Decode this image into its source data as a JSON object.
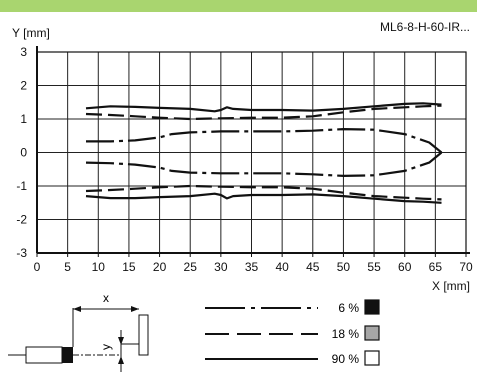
{
  "model": "ML6-8-H-60-IR...",
  "chart_data": {
    "type": "line",
    "ylabel": "Y [mm]",
    "xlabel": "X [mm]",
    "xlim": [
      0,
      70
    ],
    "ylim": [
      -3,
      3
    ],
    "x_ticks": [
      0,
      5,
      10,
      15,
      20,
      25,
      30,
      35,
      40,
      45,
      50,
      55,
      60,
      65,
      70
    ],
    "y_ticks": [
      3,
      2,
      1,
      0,
      -1,
      -2,
      -3
    ],
    "grid": true,
    "series": [
      {
        "name": "6 %",
        "style": "dash-dot",
        "curves": [
          [
            [
              8,
              0.33
            ],
            [
              12,
              0.33
            ],
            [
              16,
              0.36
            ],
            [
              20,
              0.45
            ],
            [
              22,
              0.55
            ],
            [
              25,
              0.6
            ],
            [
              30,
              0.63
            ],
            [
              35,
              0.63
            ],
            [
              40,
              0.63
            ],
            [
              45,
              0.65
            ],
            [
              50,
              0.7
            ],
            [
              55,
              0.68
            ],
            [
              60,
              0.55
            ],
            [
              64,
              0.3
            ],
            [
              66,
              0.0
            ]
          ],
          [
            [
              8,
              -0.3
            ],
            [
              12,
              -0.32
            ],
            [
              16,
              -0.36
            ],
            [
              20,
              -0.45
            ],
            [
              22,
              -0.55
            ],
            [
              25,
              -0.6
            ],
            [
              30,
              -0.62
            ],
            [
              35,
              -0.62
            ],
            [
              40,
              -0.62
            ],
            [
              45,
              -0.65
            ],
            [
              50,
              -0.7
            ],
            [
              55,
              -0.68
            ],
            [
              60,
              -0.55
            ],
            [
              64,
              -0.3
            ],
            [
              66,
              0.0
            ]
          ]
        ]
      },
      {
        "name": "18 %",
        "style": "dashed",
        "curves": [
          [
            [
              8,
              1.15
            ],
            [
              12,
              1.12
            ],
            [
              16,
              1.08
            ],
            [
              20,
              1.04
            ],
            [
              25,
              1.0
            ],
            [
              30,
              1.02
            ],
            [
              35,
              1.04
            ],
            [
              40,
              1.04
            ],
            [
              45,
              1.08
            ],
            [
              50,
              1.2
            ],
            [
              55,
              1.3
            ],
            [
              60,
              1.35
            ],
            [
              63,
              1.38
            ],
            [
              66,
              1.4
            ]
          ],
          [
            [
              8,
              -1.15
            ],
            [
              12,
              -1.12
            ],
            [
              16,
              -1.08
            ],
            [
              20,
              -1.04
            ],
            [
              25,
              -1.0
            ],
            [
              30,
              -1.02
            ],
            [
              35,
              -1.04
            ],
            [
              40,
              -1.04
            ],
            [
              45,
              -1.08
            ],
            [
              50,
              -1.2
            ],
            [
              55,
              -1.3
            ],
            [
              60,
              -1.35
            ],
            [
              63,
              -1.38
            ],
            [
              66,
              -1.4
            ]
          ]
        ]
      },
      {
        "name": "90 %",
        "style": "solid",
        "curves": [
          [
            [
              8,
              1.32
            ],
            [
              12,
              1.38
            ],
            [
              16,
              1.36
            ],
            [
              20,
              1.33
            ],
            [
              25,
              1.3
            ],
            [
              29,
              1.23
            ],
            [
              30,
              1.27
            ],
            [
              31,
              1.35
            ],
            [
              32,
              1.3
            ],
            [
              35,
              1.27
            ],
            [
              40,
              1.27
            ],
            [
              45,
              1.25
            ],
            [
              50,
              1.3
            ],
            [
              55,
              1.38
            ],
            [
              60,
              1.45
            ],
            [
              63,
              1.47
            ],
            [
              66,
              1.43
            ]
          ],
          [
            [
              8,
              -1.3
            ],
            [
              12,
              -1.36
            ],
            [
              16,
              -1.36
            ],
            [
              20,
              -1.33
            ],
            [
              25,
              -1.3
            ],
            [
              29,
              -1.23
            ],
            [
              30,
              -1.27
            ],
            [
              31,
              -1.37
            ],
            [
              32,
              -1.3
            ],
            [
              35,
              -1.27
            ],
            [
              40,
              -1.27
            ],
            [
              45,
              -1.25
            ],
            [
              50,
              -1.3
            ],
            [
              55,
              -1.38
            ],
            [
              60,
              -1.45
            ],
            [
              63,
              -1.47
            ],
            [
              66,
              -1.5
            ]
          ]
        ]
      }
    ]
  },
  "legend": [
    {
      "label": "6 %",
      "swatch": "#111111"
    },
    {
      "label": "18 %",
      "swatch": "#a6a6a6"
    },
    {
      "label": "90 %",
      "swatch": "#ffffff"
    }
  ],
  "diagram": {
    "x_label": "x",
    "y_label": "y"
  }
}
